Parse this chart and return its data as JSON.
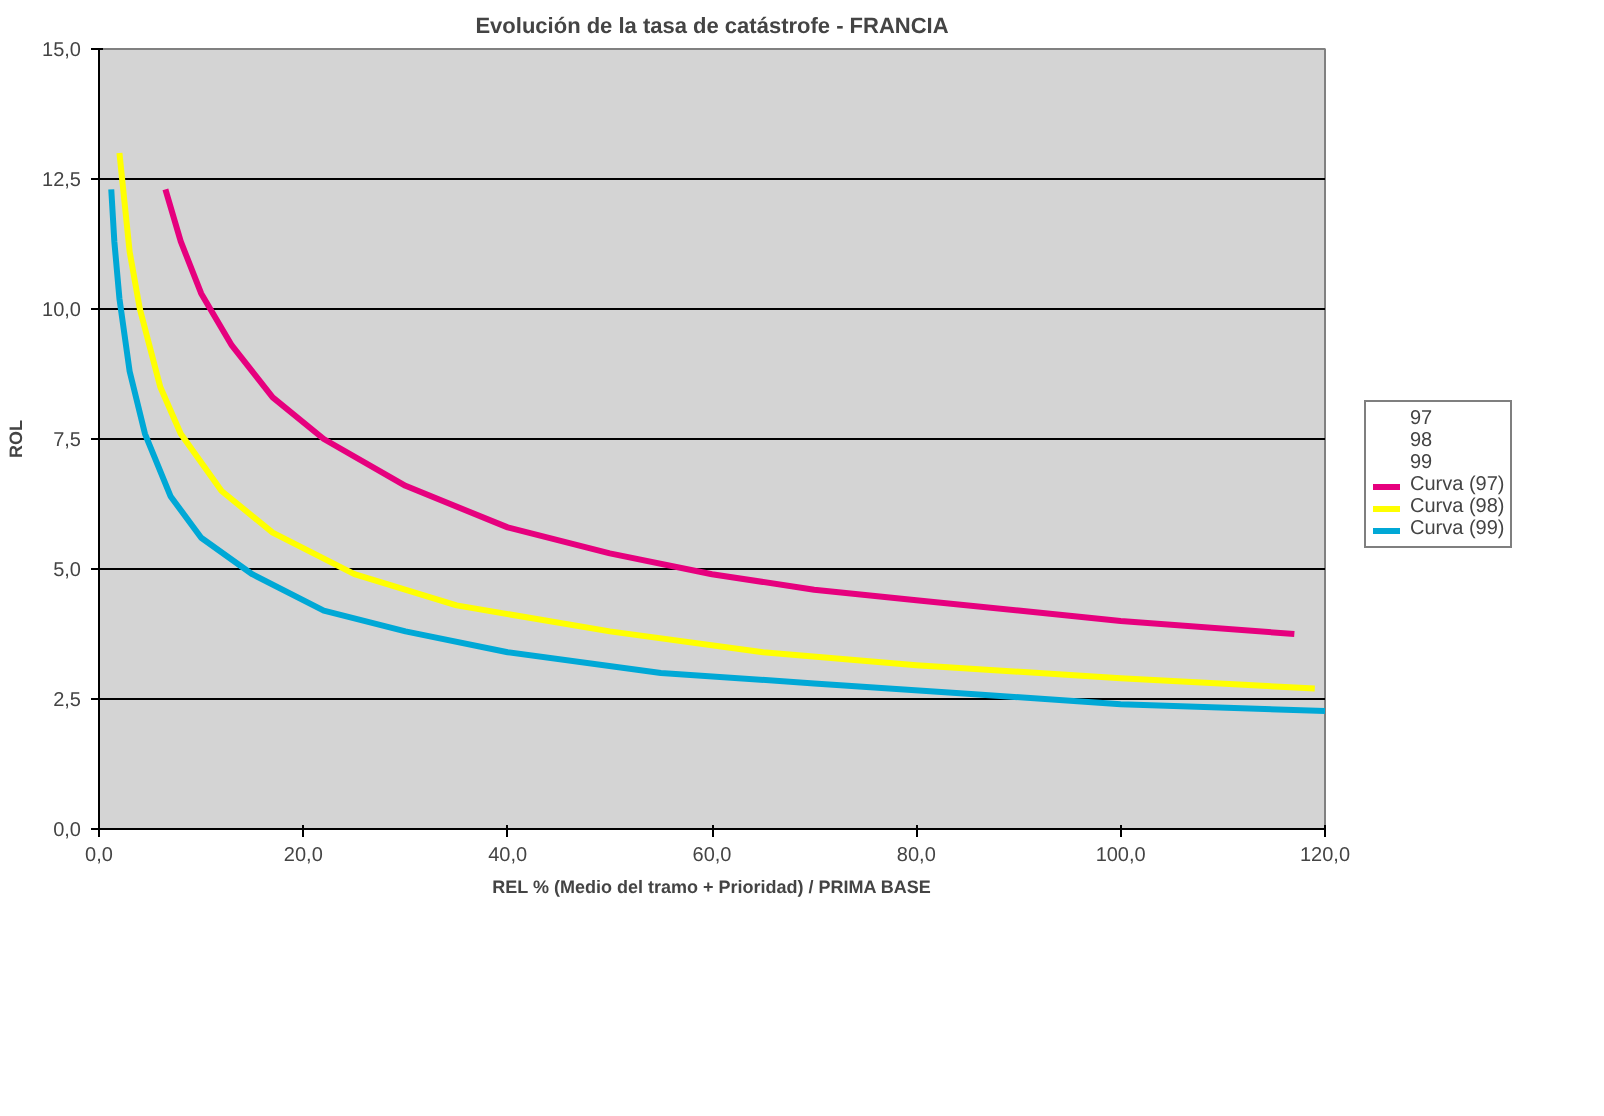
{
  "chart_data": {
    "type": "line",
    "title": "Evolución de la tasa de catástrofe - FRANCIA",
    "xlabel": "REL % (Medio del tramo + Prioridad) / PRIMA BASE",
    "ylabel": "ROL",
    "xlim": [
      0,
      120
    ],
    "ylim": [
      0,
      15
    ],
    "xticks": [
      {
        "value": 0,
        "label": "0,0"
      },
      {
        "value": 20,
        "label": "20,0"
      },
      {
        "value": 40,
        "label": "40,0"
      },
      {
        "value": 60,
        "label": "60,0"
      },
      {
        "value": 80,
        "label": "80,0"
      },
      {
        "value": 100,
        "label": "100,0"
      },
      {
        "value": 120,
        "label": "120,0"
      }
    ],
    "yticks": [
      {
        "value": 0,
        "label": "0,0"
      },
      {
        "value": 2.5,
        "label": "2,5"
      },
      {
        "value": 5,
        "label": "5,0"
      },
      {
        "value": 7.5,
        "label": "7,5"
      },
      {
        "value": 10,
        "label": "10,0"
      },
      {
        "value": 12.5,
        "label": "12,5"
      },
      {
        "value": 15,
        "label": "15,0"
      }
    ],
    "grid": "y",
    "legend": "right",
    "series": [
      {
        "name": "97",
        "type": "scatter"
      },
      {
        "name": "98",
        "type": "scatter"
      },
      {
        "name": "99",
        "type": "scatter"
      },
      {
        "name": "Curva (97)",
        "color": "#e6007e",
        "x": [
          6.5,
          8,
          10,
          13,
          17,
          22,
          30,
          40,
          50,
          60,
          70,
          80,
          90,
          100,
          117
        ],
        "values": [
          12.3,
          11.3,
          10.3,
          9.3,
          8.3,
          7.5,
          6.6,
          5.8,
          5.3,
          4.9,
          4.6,
          4.4,
          4.2,
          4.0,
          3.75
        ]
      },
      {
        "name": "Curva (98)",
        "color": "#ffff00",
        "x": [
          2,
          3,
          4,
          6,
          8,
          12,
          17,
          25,
          35,
          50,
          65,
          80,
          100,
          119
        ],
        "values": [
          13.0,
          11.1,
          10.0,
          8.5,
          7.6,
          6.5,
          5.7,
          4.9,
          4.3,
          3.8,
          3.4,
          3.15,
          2.9,
          2.7
        ]
      },
      {
        "name": "Curva (99)",
        "color": "#00a8d6",
        "x": [
          1.2,
          1.5,
          2,
          3,
          4.5,
          7,
          10,
          15,
          22,
          30,
          40,
          55,
          70,
          85,
          100,
          120
        ],
        "values": [
          12.3,
          11.3,
          10.2,
          8.8,
          7.6,
          6.4,
          5.6,
          4.9,
          4.2,
          3.8,
          3.4,
          3.0,
          2.8,
          2.6,
          2.4,
          2.27
        ]
      }
    ]
  }
}
